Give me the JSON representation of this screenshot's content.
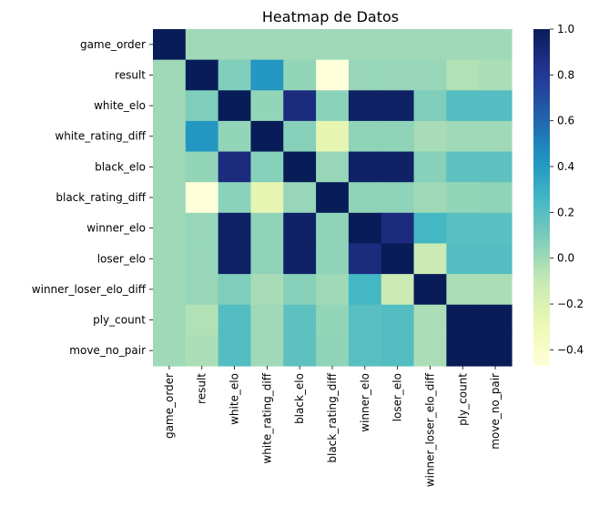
{
  "chart_data": {
    "type": "heatmap",
    "title": "Heatmap de Datos",
    "xlabel": "",
    "ylabel": "",
    "x_labels": [
      "game_order",
      "result",
      "white_elo",
      "white_rating_diff",
      "black_elo",
      "black_rating_diff",
      "winner_elo",
      "loser_elo",
      "winner_loser_elo_diff",
      "ply_count",
      "move_no_pair"
    ],
    "y_labels": [
      "game_order",
      "result",
      "white_elo",
      "white_rating_diff",
      "black_elo",
      "black_rating_diff",
      "winner_elo",
      "loser_elo",
      "winner_loser_elo_diff",
      "ply_count",
      "move_no_pair"
    ],
    "values": [
      [
        1.0,
        0.0,
        0.0,
        0.0,
        0.0,
        0.0,
        0.0,
        0.0,
        0.0,
        0.0,
        0.0
      ],
      [
        0.0,
        1.0,
        0.08,
        0.42,
        0.03,
        -0.47,
        0.02,
        0.02,
        0.02,
        -0.05,
        -0.03
      ],
      [
        0.0,
        0.08,
        1.0,
        0.03,
        0.88,
        0.05,
        0.96,
        0.96,
        0.08,
        0.21,
        0.21
      ],
      [
        0.0,
        0.42,
        0.03,
        1.0,
        0.06,
        -0.25,
        0.04,
        0.04,
        -0.02,
        0.0,
        0.0
      ],
      [
        0.0,
        0.03,
        0.88,
        0.06,
        1.0,
        0.02,
        0.96,
        0.96,
        0.06,
        0.18,
        0.18
      ],
      [
        0.0,
        -0.47,
        0.05,
        -0.25,
        0.02,
        1.0,
        0.04,
        0.04,
        0.0,
        0.03,
        0.04
      ],
      [
        0.0,
        0.02,
        0.96,
        0.04,
        0.96,
        0.04,
        1.0,
        0.88,
        0.26,
        0.19,
        0.19
      ],
      [
        0.0,
        0.02,
        0.96,
        0.04,
        0.96,
        0.04,
        0.88,
        1.0,
        -0.12,
        0.21,
        0.21
      ],
      [
        0.0,
        0.02,
        0.08,
        -0.02,
        0.06,
        0.0,
        0.26,
        -0.12,
        1.0,
        -0.03,
        -0.03
      ],
      [
        0.0,
        -0.05,
        0.21,
        0.0,
        0.18,
        0.03,
        0.19,
        0.21,
        -0.03,
        1.0,
        1.0
      ],
      [
        0.0,
        -0.03,
        0.21,
        0.0,
        0.18,
        0.04,
        0.19,
        0.21,
        -0.03,
        1.0,
        1.0
      ]
    ],
    "value_range": [
      -0.47,
      1.0
    ],
    "colormap": "YlGnBu",
    "colorbar": {
      "ticks": [
        -0.4,
        -0.2,
        0.0,
        0.2,
        0.4,
        0.6,
        0.8,
        1.0
      ],
      "tick_labels": [
        "−0.4",
        "−0.2",
        "0.0",
        "0.2",
        "0.4",
        "0.6",
        "0.8",
        "1.0"
      ],
      "placement": "right"
    },
    "grid": false
  }
}
